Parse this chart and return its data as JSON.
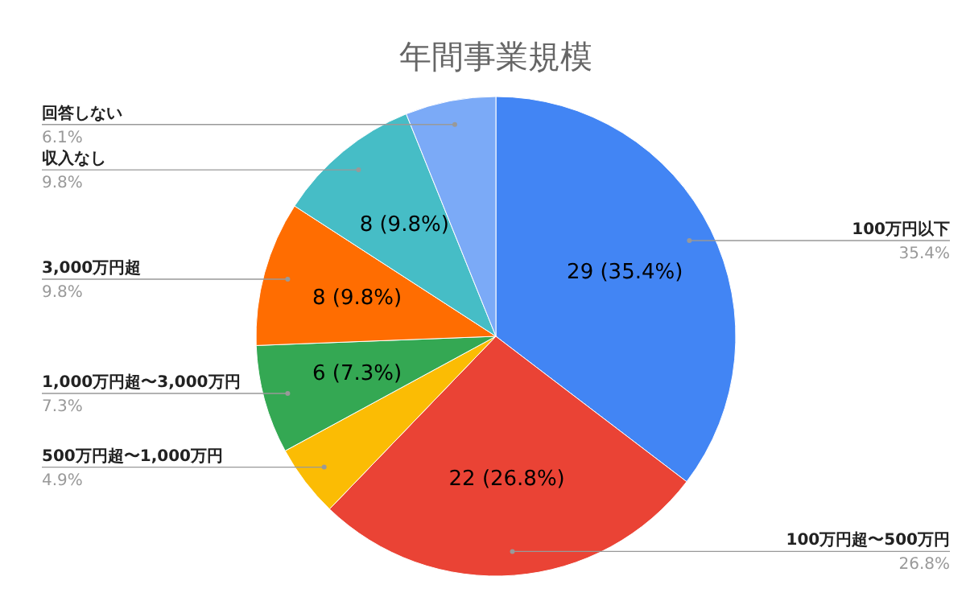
{
  "chart_data": {
    "type": "pie",
    "title": "年間事業規模",
    "categories": [
      "100万円以下",
      "100万円超〜500万円",
      "500万円超〜1,000万円",
      "1,000万円超〜3,000万円",
      "3,000万円超",
      "収入なし",
      "回答しない"
    ],
    "values": [
      29,
      22,
      4,
      6,
      8,
      8,
      5
    ],
    "colors": [
      "#4285f4",
      "#ea4335",
      "#fbbc04",
      "#34a853",
      "#ff6d01",
      "#46bdc6",
      "#7baaf7"
    ],
    "value_labels": [
      "29 (35.4%)",
      "22 (26.8%)",
      null,
      "6 (7.3%)",
      "8 (9.8%)",
      "8 (9.8%)",
      null
    ],
    "annotations": [
      "35.4%",
      "26.8%",
      "4.9%",
      "7.3%",
      "9.8%",
      "9.8%",
      "6.1%"
    ],
    "legend": false
  }
}
